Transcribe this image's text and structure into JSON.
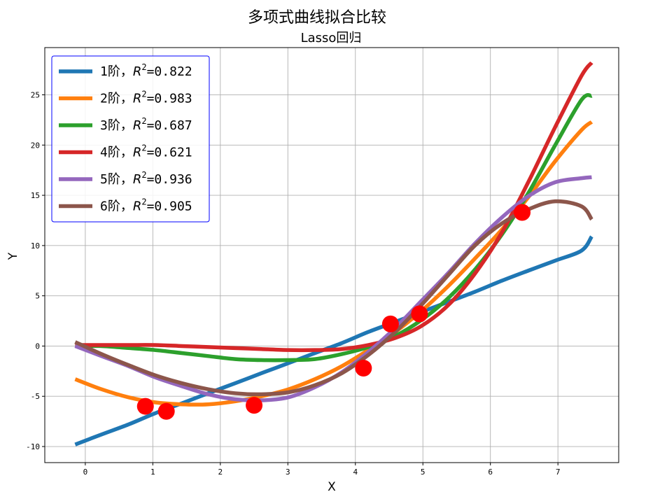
{
  "title": "多项式曲线拟合比较",
  "subtitle": "Lasso回归",
  "chart_data": {
    "type": "line",
    "xlabel": "X",
    "ylabel": "Y",
    "xlim": [
      -0.6,
      7.9
    ],
    "ylim": [
      -11.6,
      29.7
    ],
    "xticks": [
      0,
      1,
      2,
      3,
      4,
      5,
      6,
      7
    ],
    "yticks": [
      -10,
      -5,
      0,
      5,
      10,
      15,
      20,
      25
    ],
    "grid": true,
    "legend_position": "top-left",
    "x_curve": [
      -0.15,
      0.24,
      0.64,
      1.03,
      1.43,
      1.82,
      2.22,
      2.61,
      3.01,
      3.4,
      3.8,
      4.19,
      4.59,
      4.98,
      5.38,
      5.77,
      6.17,
      6.56,
      6.96,
      7.35,
      7.5
    ],
    "series": [
      {
        "name": "1阶",
        "r2": "0.822",
        "color": "#1f77b4",
        "y": [
          -9.8,
          -8.8,
          -7.8,
          -6.7,
          -5.7,
          -4.7,
          -3.7,
          -2.7,
          -1.7,
          -0.7,
          0.3,
          1.4,
          2.4,
          3.4,
          4.4,
          5.4,
          6.5,
          7.5,
          8.5,
          9.5,
          10.9
        ]
      },
      {
        "name": "2阶",
        "r2": "0.983",
        "color": "#ff7f0e",
        "y": [
          -3.3,
          -4.3,
          -5.1,
          -5.6,
          -5.8,
          -5.8,
          -5.5,
          -5.0,
          -4.3,
          -3.3,
          -2.0,
          -0.4,
          1.4,
          3.5,
          6.0,
          8.7,
          11.6,
          14.8,
          18.4,
          21.5,
          22.3
        ]
      },
      {
        "name": "3阶",
        "r2": "0.687",
        "color": "#2ca02c",
        "y": [
          0.0,
          0.0,
          -0.2,
          -0.4,
          -0.7,
          -1.0,
          -1.3,
          -1.4,
          -1.4,
          -1.3,
          -0.8,
          -0.1,
          1.0,
          2.6,
          4.8,
          7.6,
          11.1,
          15.2,
          20.0,
          24.5,
          24.9
        ]
      },
      {
        "name": "4阶",
        "r2": "0.621",
        "color": "#d62728",
        "y": [
          0.1,
          0.1,
          0.1,
          0.1,
          0.0,
          -0.1,
          -0.2,
          -0.3,
          -0.4,
          -0.4,
          -0.3,
          0.1,
          0.8,
          2.0,
          4.1,
          7.2,
          11.3,
          16.3,
          21.8,
          26.9,
          28.2
        ]
      },
      {
        "name": "5阶",
        "r2": "0.936",
        "color": "#9467bd",
        "y": [
          0.0,
          -1.0,
          -2.0,
          -3.1,
          -4.0,
          -4.8,
          -5.3,
          -5.4,
          -5.1,
          -4.1,
          -2.6,
          -0.6,
          1.8,
          4.5,
          7.3,
          10.2,
          12.8,
          14.9,
          16.3,
          16.7,
          16.8
        ]
      },
      {
        "name": "6阶",
        "r2": "0.905",
        "color": "#8c564b",
        "y": [
          0.4,
          -0.8,
          -1.9,
          -2.9,
          -3.7,
          -4.3,
          -4.7,
          -4.8,
          -4.6,
          -3.9,
          -2.7,
          -0.9,
          1.4,
          4.1,
          7.1,
          10.0,
          12.2,
          13.6,
          14.4,
          13.9,
          12.6
        ]
      }
    ],
    "points": [
      {
        "x": 0.89,
        "y": -6.0
      },
      {
        "x": 1.2,
        "y": -6.5
      },
      {
        "x": 2.5,
        "y": -5.9
      },
      {
        "x": 4.12,
        "y": -2.2
      },
      {
        "x": 4.52,
        "y": 2.2
      },
      {
        "x": 4.95,
        "y": 3.2
      },
      {
        "x": 6.47,
        "y": 13.3
      }
    ],
    "point_color": "#ff0000"
  }
}
